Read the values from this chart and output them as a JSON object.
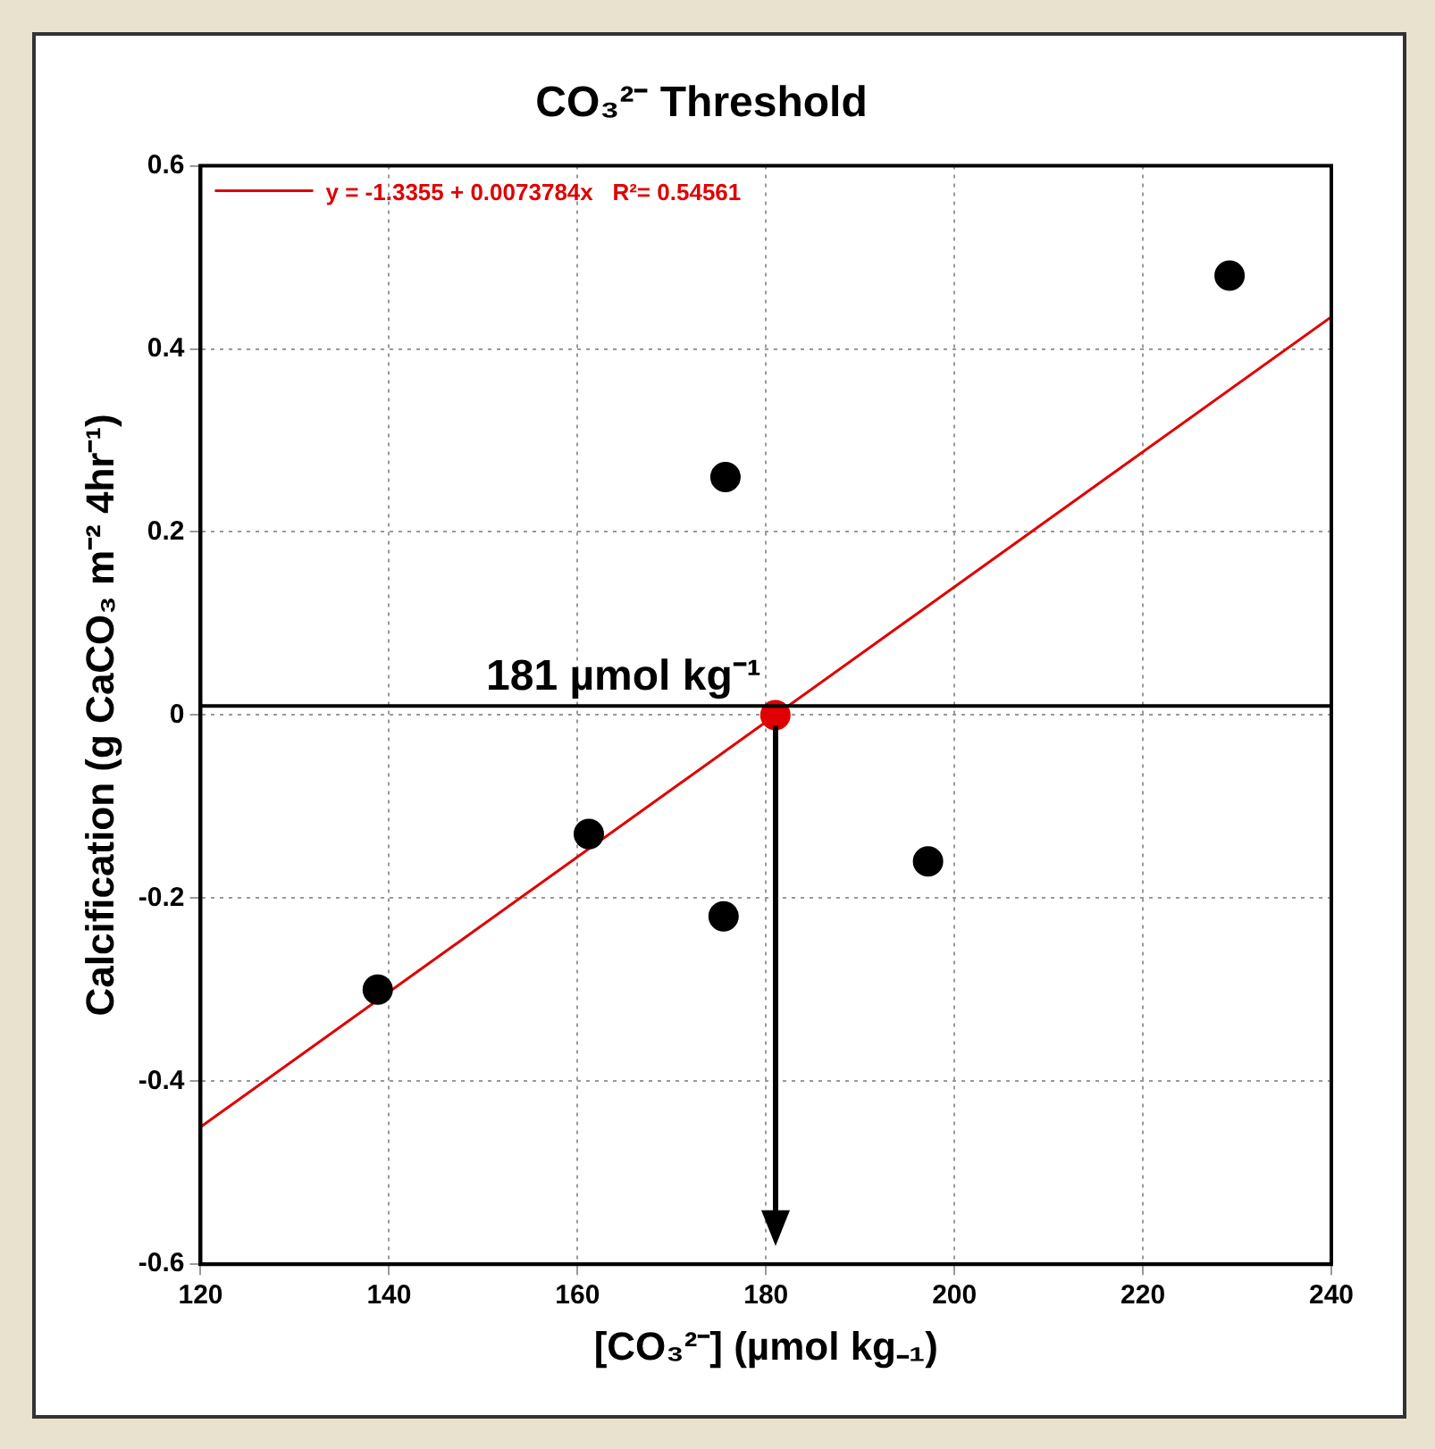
{
  "chart_data": {
    "type": "scatter",
    "title": "CO₃²⁻ Threshold",
    "xlabel": "[CO₃²⁻] (µmol kg₋₁)",
    "ylabel": "Calcification (g CaCO₃ m⁻² 4hr⁻¹)",
    "xlim": [
      120,
      240
    ],
    "xticks": [
      120,
      140,
      160,
      180,
      200,
      220,
      240
    ],
    "ylim": [
      -0.6,
      0.6
    ],
    "yticks": [
      -0.6,
      -0.4,
      -0.2,
      0,
      0.2,
      0.4,
      0.6
    ],
    "grid": true,
    "legend": "top left",
    "marker": "circle",
    "series": [
      {
        "color": "#000000",
        "x": [
          138.8,
          161.2,
          175.5,
          175.7,
          197.2,
          229.2
        ],
        "values": [
          -0.3,
          -0.13,
          -0.22,
          0.26,
          -0.16,
          0.48
        ]
      },
      {
        "type": "line",
        "name": "y = -1.3355 + 0.0073784x   R²= 0.54561",
        "color": "#e00000",
        "line_style": "solid",
        "marker": "none",
        "x": [
          120,
          240
        ],
        "values": [
          -0.45,
          0.435
        ]
      },
      {
        "color": "#e00000",
        "x": [
          181
        ],
        "values": [
          0
        ]
      }
    ],
    "ref_lines": [
      {
        "axis": "y",
        "value": 0.01,
        "color": "#000000"
      }
    ],
    "annotations": [
      {
        "text": "181 µmol kg⁻¹",
        "x": 181,
        "y": 0
      }
    ]
  }
}
